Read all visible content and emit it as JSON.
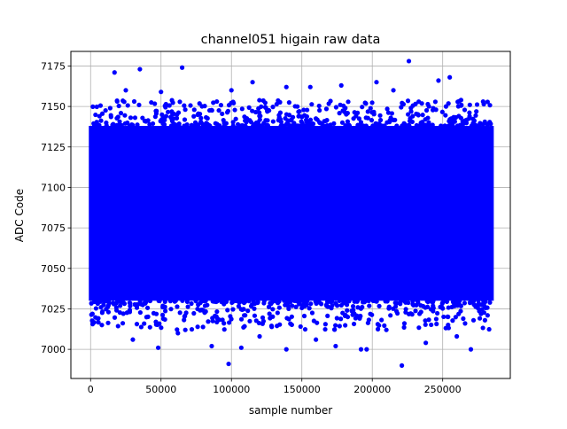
{
  "chart_data": {
    "type": "scatter",
    "title": "channel051 higain raw data",
    "xlabel": "sample number",
    "ylabel": "ADC Code",
    "xlim": [
      -14000,
      298000
    ],
    "ylim": [
      6982,
      7184
    ],
    "xticks": [
      0,
      50000,
      100000,
      150000,
      200000,
      250000
    ],
    "xtick_labels": [
      "0",
      "50000",
      "100000",
      "150000",
      "200000",
      "250000"
    ],
    "yticks": [
      7000,
      7025,
      7050,
      7075,
      7100,
      7125,
      7150,
      7175
    ],
    "ytick_labels": [
      "7000",
      "7025",
      "7050",
      "7075",
      "7100",
      "7125",
      "7150",
      "7175"
    ],
    "grid": true,
    "marker_color": "#0000ff",
    "dense_band": {
      "x": [
        0,
        285000
      ],
      "y": [
        7030,
        7138
      ]
    },
    "x_range": [
      0,
      285000
    ],
    "series": [
      {
        "values_xy": [
          [
            17000,
            7171
          ],
          [
            35000,
            7173
          ],
          [
            65000,
            7174
          ],
          [
            226000,
            7178
          ],
          [
            255000,
            7168
          ],
          [
            203000,
            7165
          ],
          [
            247000,
            7166
          ],
          [
            115000,
            7165
          ],
          [
            139000,
            7162
          ],
          [
            156000,
            7162
          ],
          [
            178000,
            7163
          ],
          [
            215000,
            7160
          ],
          [
            100000,
            7160
          ],
          [
            50000,
            7159
          ],
          [
            25000,
            7160
          ],
          [
            98000,
            6991
          ],
          [
            139000,
            7000
          ],
          [
            221000,
            6990
          ],
          [
            270000,
            7000
          ],
          [
            192000,
            7000
          ],
          [
            196000,
            7000
          ],
          [
            48000,
            7001
          ],
          [
            86000,
            7002
          ],
          [
            107000,
            7001
          ],
          [
            174000,
            7002
          ],
          [
            238000,
            7004
          ],
          [
            30000,
            7006
          ],
          [
            8000,
            7015
          ],
          [
            62000,
            7010
          ],
          [
            120000,
            7008
          ],
          [
            160000,
            7006
          ],
          [
            210000,
            7012
          ],
          [
            260000,
            7008
          ],
          [
            280000,
            7018
          ]
        ]
      }
    ]
  }
}
